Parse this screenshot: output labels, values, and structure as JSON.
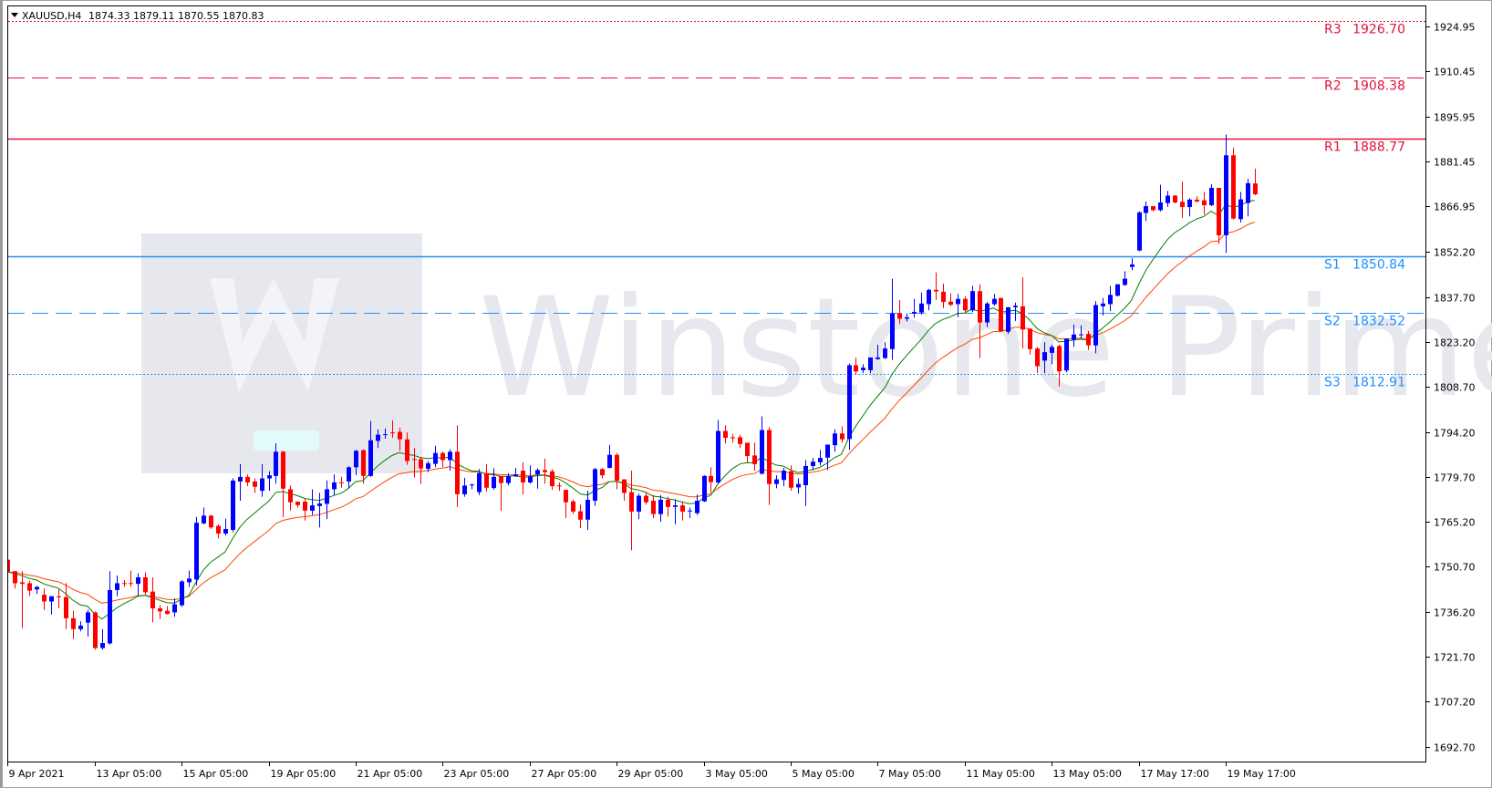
{
  "header": {
    "menu_icon": "triangle-down-icon",
    "symbol": "XAUUSD,H4",
    "ohlc": "1874.33 1879.11 1870.55 1870.83"
  },
  "watermark": {
    "text": "Winstone Prime",
    "logo_letter": "W"
  },
  "colors": {
    "bull": "#0000ff",
    "bear": "#ff0000",
    "ma_fast": "#008000",
    "ma_slow": "#ff4500",
    "resistance": "#e0143c",
    "support": "#1e90ff"
  },
  "chart_data": {
    "type": "candlestick",
    "symbol": "XAUUSD",
    "timeframe": "H4",
    "ylim": [
      1688,
      1928
    ],
    "y_ticks": [
      "1924.95",
      "1910.45",
      "1895.95",
      "1881.45",
      "1866.95",
      "1852.20",
      "1837.70",
      "1823.20",
      "1808.70",
      "1794.20",
      "1779.70",
      "1765.20",
      "1750.70",
      "1736.20",
      "1721.70",
      "1707.20",
      "1692.70"
    ],
    "x_ticks": [
      {
        "candle": 0,
        "label": "9 Apr 2021"
      },
      {
        "candle": 12,
        "label": "13 Apr 05:00"
      },
      {
        "candle": 24,
        "label": "15 Apr 05:00"
      },
      {
        "candle": 36,
        "label": "19 Apr 05:00"
      },
      {
        "candle": 48,
        "label": "21 Apr 05:00"
      },
      {
        "candle": 60,
        "label": "23 Apr 05:00"
      },
      {
        "candle": 72,
        "label": "27 Apr 05:00"
      },
      {
        "candle": 84,
        "label": "29 Apr 05:00"
      },
      {
        "candle": 96,
        "label": "3 May 05:00"
      },
      {
        "candle": 108,
        "label": "5 May 05:00"
      },
      {
        "candle": 120,
        "label": "7 May 05:00"
      },
      {
        "candle": 132,
        "label": "11 May 05:00"
      },
      {
        "candle": 144,
        "label": "13 May 05:00"
      },
      {
        "candle": 156,
        "label": "17 May 17:00"
      },
      {
        "candle": 168,
        "label": "19 May 17:00"
      }
    ],
    "levels": [
      {
        "name": "R3",
        "value": "1926.70",
        "kind": "resistance",
        "style": "dotted"
      },
      {
        "name": "R2",
        "value": "1908.38",
        "kind": "resistance",
        "style": "dashed"
      },
      {
        "name": "R1",
        "value": "1888.77",
        "kind": "resistance",
        "style": "solid"
      },
      {
        "name": "S1",
        "value": "1850.84",
        "kind": "support",
        "style": "solid"
      },
      {
        "name": "S2",
        "value": "1832.52",
        "kind": "support",
        "style": "dashed"
      },
      {
        "name": "S3",
        "value": "1812.91",
        "kind": "support",
        "style": "dotted"
      }
    ],
    "ohlc_fields": [
      "open",
      "high",
      "low",
      "close"
    ],
    "candles": [
      [
        1753.0,
        1753.5,
        1747.6,
        1749.1
      ],
      [
        1749.3,
        1749.3,
        1743.7,
        1745.4
      ],
      [
        1745.7,
        1749.3,
        1730.9,
        1745.2
      ],
      [
        1745.4,
        1746.2,
        1741.2,
        1743.0
      ],
      [
        1743.4,
        1744.5,
        1741.9,
        1744.2
      ],
      [
        1741.7,
        1743.7,
        1736.8,
        1739.5
      ],
      [
        1739.5,
        1741.2,
        1735.3,
        1741.2
      ],
      [
        1741.0,
        1743.4,
        1737.3,
        1740.8
      ],
      [
        1740.9,
        1745.4,
        1730.6,
        1734.1
      ],
      [
        1734.1,
        1736.5,
        1727.4,
        1730.6
      ],
      [
        1730.6,
        1733.1,
        1729.9,
        1731.7
      ],
      [
        1732.7,
        1736.8,
        1728.2,
        1736.0
      ],
      [
        1736.0,
        1736.3,
        1724.0,
        1724.5
      ],
      [
        1724.5,
        1730.6,
        1724.0,
        1726.1
      ],
      [
        1726.0,
        1749.3,
        1725.6,
        1743.2
      ],
      [
        1743.2,
        1747.9,
        1741.2,
        1745.4
      ],
      [
        1745.3,
        1746.4,
        1744.2,
        1745.1
      ],
      [
        1745.3,
        1749.5,
        1744.2,
        1745.0
      ],
      [
        1745.2,
        1748.6,
        1741.4,
        1747.3
      ],
      [
        1747.3,
        1748.9,
        1741.7,
        1742.5
      ],
      [
        1742.7,
        1747.3,
        1732.8,
        1737.3
      ],
      [
        1737.3,
        1738.3,
        1733.8,
        1736.3
      ],
      [
        1736.5,
        1738.0,
        1735.3,
        1735.5
      ],
      [
        1736.0,
        1740.5,
        1734.6,
        1738.6
      ],
      [
        1738.3,
        1746.4,
        1737.8,
        1746.0
      ],
      [
        1745.7,
        1749.5,
        1744.2,
        1746.9
      ],
      [
        1746.6,
        1766.8,
        1744.7,
        1764.9
      ],
      [
        1764.7,
        1769.8,
        1764.4,
        1767.2
      ],
      [
        1767.2,
        1767.4,
        1762.9,
        1763.4
      ],
      [
        1763.9,
        1764.4,
        1759.8,
        1761.4
      ],
      [
        1761.4,
        1766.2,
        1760.8,
        1762.9
      ],
      [
        1762.6,
        1779.2,
        1761.9,
        1778.5
      ],
      [
        1778.2,
        1783.8,
        1772.0,
        1779.7
      ],
      [
        1779.7,
        1780.5,
        1776.7,
        1777.9
      ],
      [
        1778.2,
        1779.2,
        1774.5,
        1776.5
      ],
      [
        1775.2,
        1783.8,
        1773.3,
        1779.2
      ],
      [
        1779.2,
        1781.5,
        1775.2,
        1780.2
      ],
      [
        1780.0,
        1790.5,
        1777.5,
        1787.8
      ],
      [
        1787.8,
        1788.1,
        1766.7,
        1775.9
      ],
      [
        1775.7,
        1776.9,
        1768.8,
        1771.5
      ],
      [
        1771.7,
        1771.7,
        1769.8,
        1770.6
      ],
      [
        1771.7,
        1772.8,
        1765.6,
        1768.8
      ],
      [
        1768.8,
        1775.7,
        1767.4,
        1770.5
      ],
      [
        1770.3,
        1774.6,
        1763.4,
        1771.1
      ],
      [
        1771.0,
        1778.5,
        1766.1,
        1775.7
      ],
      [
        1775.7,
        1780.5,
        1773.8,
        1777.9
      ],
      [
        1777.8,
        1779.7,
        1776.2,
        1777.6
      ],
      [
        1778.2,
        1783.1,
        1776.0,
        1782.8
      ],
      [
        1782.8,
        1788.4,
        1780.2,
        1788.1
      ],
      [
        1788.3,
        1788.6,
        1777.5,
        1780.0
      ],
      [
        1780.0,
        1797.7,
        1779.7,
        1791.5
      ],
      [
        1791.3,
        1795.0,
        1789.0,
        1793.3
      ],
      [
        1793.2,
        1795.3,
        1792.0,
        1793.3
      ],
      [
        1793.9,
        1797.9,
        1792.3,
        1793.7
      ],
      [
        1794.2,
        1795.5,
        1788.1,
        1791.8
      ],
      [
        1791.8,
        1794.0,
        1783.6,
        1784.8
      ],
      [
        1785.3,
        1789.0,
        1779.5,
        1785.0
      ],
      [
        1785.4,
        1786.1,
        1777.4,
        1782.4
      ],
      [
        1782.3,
        1784.8,
        1781.2,
        1784.1
      ],
      [
        1783.9,
        1789.7,
        1782.8,
        1787.4
      ],
      [
        1787.4,
        1787.8,
        1782.8,
        1785.1
      ],
      [
        1785.1,
        1788.6,
        1781.7,
        1787.8
      ],
      [
        1787.8,
        1796.3,
        1770.0,
        1774.1
      ],
      [
        1774.1,
        1779.4,
        1773.3,
        1776.9
      ],
      [
        1777.0,
        1777.5,
        1775.7,
        1777.1
      ],
      [
        1774.8,
        1782.2,
        1773.8,
        1780.9
      ],
      [
        1780.9,
        1783.8,
        1775.0,
        1776.2
      ],
      [
        1776.1,
        1782.5,
        1775.5,
        1779.7
      ],
      [
        1779.9,
        1779.9,
        1768.8,
        1777.7
      ],
      [
        1777.7,
        1780.9,
        1776.9,
        1779.9
      ],
      [
        1779.9,
        1782.6,
        1779.7,
        1780.5
      ],
      [
        1781.7,
        1784.4,
        1774.0,
        1777.9
      ],
      [
        1777.9,
        1783.4,
        1777.5,
        1779.9
      ],
      [
        1780.5,
        1782.4,
        1775.9,
        1781.9
      ],
      [
        1781.9,
        1785.6,
        1777.5,
        1781.2
      ],
      [
        1781.5,
        1782.2,
        1775.5,
        1776.7
      ],
      [
        1776.8,
        1777.9,
        1775.2,
        1776.6
      ],
      [
        1775.5,
        1775.5,
        1766.4,
        1771.5
      ],
      [
        1771.8,
        1772.3,
        1767.7,
        1768.5
      ],
      [
        1768.6,
        1770.8,
        1763.2,
        1765.9
      ],
      [
        1765.9,
        1775.3,
        1762.6,
        1772.3
      ],
      [
        1772.0,
        1782.6,
        1770.3,
        1782.2
      ],
      [
        1782.2,
        1782.6,
        1779.2,
        1780.2
      ],
      [
        1782.6,
        1790.0,
        1782.4,
        1786.8
      ],
      [
        1786.8,
        1787.4,
        1775.7,
        1778.5
      ],
      [
        1778.9,
        1778.9,
        1772.0,
        1774.5
      ],
      [
        1774.8,
        1781.7,
        1756.0,
        1768.5
      ],
      [
        1768.5,
        1774.3,
        1766.1,
        1773.6
      ],
      [
        1773.6,
        1774.8,
        1770.8,
        1771.5
      ],
      [
        1772.0,
        1773.8,
        1766.4,
        1767.7
      ],
      [
        1767.7,
        1773.8,
        1765.2,
        1772.3
      ],
      [
        1772.3,
        1773.3,
        1766.9,
        1770.0
      ],
      [
        1770.0,
        1772.5,
        1764.4,
        1770.5
      ],
      [
        1770.5,
        1771.8,
        1765.6,
        1768.5
      ],
      [
        1768.6,
        1769.8,
        1766.4,
        1768.7
      ],
      [
        1768.0,
        1774.0,
        1767.4,
        1772.0
      ],
      [
        1771.8,
        1780.2,
        1771.6,
        1780.0
      ],
      [
        1780.0,
        1782.8,
        1774.6,
        1778.0
      ],
      [
        1777.9,
        1798.0,
        1777.5,
        1794.5
      ],
      [
        1794.5,
        1796.3,
        1790.5,
        1792.3
      ],
      [
        1792.3,
        1793.5,
        1790.7,
        1792.1
      ],
      [
        1792.5,
        1793.3,
        1789.0,
        1790.3
      ],
      [
        1790.7,
        1790.7,
        1784.1,
        1786.4
      ],
      [
        1786.6,
        1790.7,
        1781.7,
        1783.8
      ],
      [
        1780.7,
        1799.2,
        1780.5,
        1794.8
      ],
      [
        1794.8,
        1795.7,
        1770.6,
        1777.4
      ],
      [
        1777.4,
        1780.2,
        1776.0,
        1778.9
      ],
      [
        1778.7,
        1782.6,
        1776.7,
        1781.7
      ],
      [
        1781.5,
        1783.4,
        1775.2,
        1776.2
      ],
      [
        1776.3,
        1779.2,
        1774.3,
        1777.4
      ],
      [
        1777.0,
        1785.1,
        1770.3,
        1783.2
      ],
      [
        1783.2,
        1785.8,
        1781.9,
        1784.6
      ],
      [
        1784.4,
        1788.4,
        1783.4,
        1785.8
      ],
      [
        1785.9,
        1790.1,
        1781.9,
        1790.1
      ],
      [
        1789.9,
        1795.0,
        1787.8,
        1793.7
      ],
      [
        1793.7,
        1796.0,
        1790.7,
        1791.8
      ],
      [
        1791.9,
        1816.2,
        1788.4,
        1815.7
      ],
      [
        1815.7,
        1818.2,
        1812.7,
        1813.7
      ],
      [
        1814.1,
        1816.0,
        1813.2,
        1814.9
      ],
      [
        1814.1,
        1818.2,
        1813.2,
        1818.2
      ],
      [
        1817.7,
        1822.3,
        1817.4,
        1818.2
      ],
      [
        1818.0,
        1823.1,
        1817.7,
        1821.1
      ],
      [
        1820.9,
        1843.6,
        1817.4,
        1832.4
      ],
      [
        1832.4,
        1836.7,
        1829.0,
        1830.7
      ],
      [
        1830.7,
        1832.4,
        1829.8,
        1831.2
      ],
      [
        1832.4,
        1837.1,
        1831.0,
        1832.9
      ],
      [
        1832.7,
        1839.1,
        1832.0,
        1835.6
      ],
      [
        1835.4,
        1840.3,
        1833.4,
        1840.0
      ],
      [
        1840.0,
        1845.6,
        1836.7,
        1839.5
      ],
      [
        1839.4,
        1842.0,
        1834.1,
        1836.1
      ],
      [
        1836.2,
        1838.9,
        1834.7,
        1835.2
      ],
      [
        1835.4,
        1838.7,
        1831.2,
        1837.1
      ],
      [
        1837.1,
        1837.9,
        1832.9,
        1833.4
      ],
      [
        1833.4,
        1841.3,
        1832.9,
        1839.6
      ],
      [
        1839.6,
        1841.8,
        1818.0,
        1829.5
      ],
      [
        1829.5,
        1836.1,
        1828.0,
        1835.6
      ],
      [
        1835.4,
        1838.7,
        1834.9,
        1837.1
      ],
      [
        1837.4,
        1837.4,
        1826.5,
        1826.7
      ],
      [
        1826.5,
        1834.4,
        1825.8,
        1834.4
      ],
      [
        1834.4,
        1835.9,
        1830.0,
        1834.9
      ],
      [
        1834.7,
        1844.0,
        1821.1,
        1827.2
      ],
      [
        1827.5,
        1827.5,
        1819.1,
        1820.9
      ],
      [
        1821.1,
        1821.6,
        1813.2,
        1815.4
      ],
      [
        1817.2,
        1823.1,
        1813.2,
        1819.9
      ],
      [
        1819.7,
        1822.3,
        1816.0,
        1821.6
      ],
      [
        1821.9,
        1822.3,
        1808.8,
        1813.7
      ],
      [
        1814.0,
        1824.3,
        1813.4,
        1824.3
      ],
      [
        1823.9,
        1828.8,
        1821.6,
        1825.6
      ],
      [
        1825.4,
        1828.5,
        1824.3,
        1825.5
      ],
      [
        1825.8,
        1826.7,
        1820.6,
        1822.1
      ],
      [
        1822.1,
        1836.4,
        1819.6,
        1835.1
      ],
      [
        1834.7,
        1837.4,
        1831.7,
        1835.6
      ],
      [
        1835.4,
        1841.3,
        1833.2,
        1838.4
      ],
      [
        1838.1,
        1841.8,
        1837.9,
        1841.8
      ],
      [
        1841.6,
        1846.0,
        1841.3,
        1843.6
      ],
      [
        1847.4,
        1850.2,
        1846.3,
        1848.2
      ],
      [
        1852.7,
        1865.3,
        1852.5,
        1865.0
      ],
      [
        1864.8,
        1868.5,
        1862.2,
        1867.0
      ],
      [
        1867.0,
        1867.0,
        1865.3,
        1865.7
      ],
      [
        1865.7,
        1873.9,
        1865.3,
        1868.2
      ],
      [
        1868.0,
        1871.9,
        1866.7,
        1870.4
      ],
      [
        1870.4,
        1870.6,
        1867.9,
        1868.2
      ],
      [
        1868.4,
        1874.9,
        1863.2,
        1866.7
      ],
      [
        1866.7,
        1869.6,
        1863.7,
        1869.1
      ],
      [
        1869.1,
        1870.2,
        1868.2,
        1868.5
      ],
      [
        1868.9,
        1871.6,
        1864.3,
        1867.3
      ],
      [
        1867.3,
        1874.1,
        1867.0,
        1872.9
      ],
      [
        1872.9,
        1872.9,
        1854.8,
        1857.6
      ],
      [
        1857.6,
        1890.1,
        1851.9,
        1883.4
      ],
      [
        1883.4,
        1885.9,
        1862.7,
        1863.0
      ],
      [
        1862.8,
        1871.6,
        1861.7,
        1869.2
      ],
      [
        1868.0,
        1875.8,
        1863.7,
        1874.4
      ],
      [
        1874.33,
        1879.11,
        1870.55,
        1870.83
      ]
    ]
  }
}
